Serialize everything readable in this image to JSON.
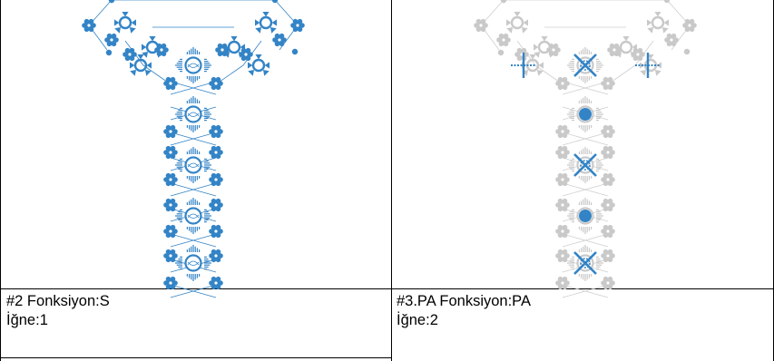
{
  "colors": {
    "active": "#3384c6",
    "inactive": "#c9c9c9",
    "border": "#000000"
  },
  "cells": [
    {
      "caption_line1": "#2 Fonksiyon:S",
      "caption_line2": "İğne:1",
      "diagram_state": "all-active"
    },
    {
      "caption_line1": "#3.PA Fonksiyon:PA",
      "caption_line2": "İğne:2",
      "diagram_state": "mostly-inactive-with-highlights"
    }
  ]
}
